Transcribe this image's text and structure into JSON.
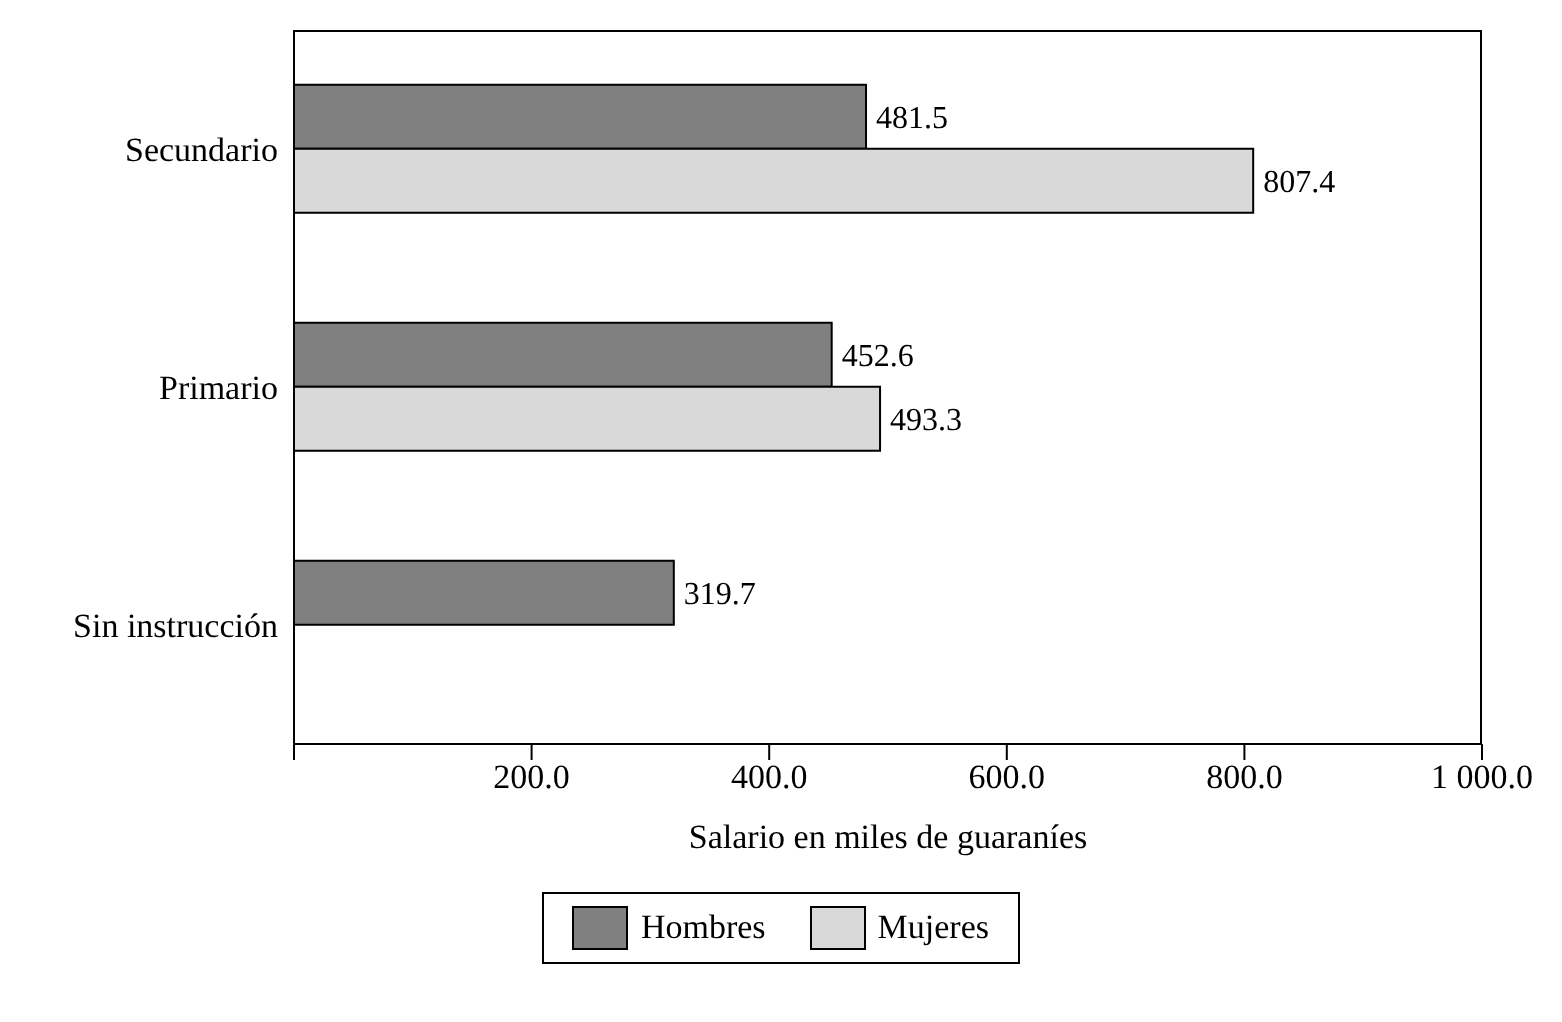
{
  "chart_data": {
    "type": "bar",
    "orientation": "horizontal",
    "xlabel": "Salario en miles de guaraníes",
    "categories": [
      "Secundario",
      "Primario",
      "Sin instrucción"
    ],
    "series": [
      {
        "name": "Hombres",
        "color": "#808080",
        "values": [
          481.5,
          452.6,
          319.7
        ]
      },
      {
        "name": "Mujeres",
        "color": "#d9d9d9",
        "values": [
          807.4,
          493.3,
          null
        ]
      }
    ],
    "xlim": [
      0,
      1000
    ],
    "xticks": [
      {
        "value": 0,
        "label": null
      },
      {
        "value": 200,
        "label": "200.0"
      },
      {
        "value": 400,
        "label": "400.0"
      },
      {
        "value": 600,
        "label": "600.0"
      },
      {
        "value": 800,
        "label": "800.0"
      },
      {
        "value": 1000,
        "label": "1 000.0"
      }
    ],
    "data_labels": true,
    "grid": false,
    "legend": "bottom"
  }
}
